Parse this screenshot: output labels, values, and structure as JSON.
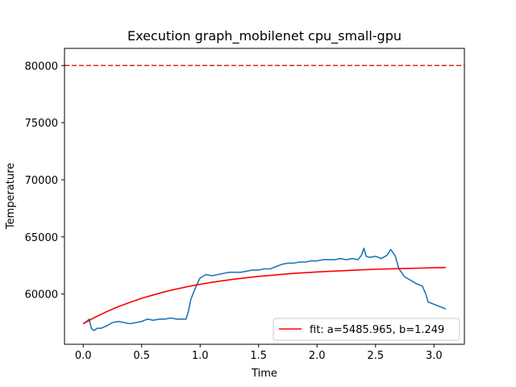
{
  "chart_data": {
    "type": "line",
    "title": "Execution graph_mobilenet cpu_small-gpu",
    "xlabel": "Time",
    "ylabel": "Temperature",
    "xlim": [
      -0.16,
      3.26
    ],
    "ylim": [
      55600,
      81500
    ],
    "x_ticks": [
      0.0,
      0.5,
      1.0,
      1.5,
      2.0,
      2.5,
      3.0
    ],
    "x_tick_labels": [
      "0.0",
      "0.5",
      "1.0",
      "1.5",
      "2.0",
      "2.5",
      "3.0"
    ],
    "y_ticks": [
      60000,
      65000,
      70000,
      75000,
      80000
    ],
    "y_tick_labels": [
      "60000",
      "65000",
      "70000",
      "75000",
      "80000"
    ],
    "grid": false,
    "legend_placement": "lower-right",
    "threshold": {
      "y": 80000,
      "color": "#d62728",
      "style": "dashed"
    },
    "series": [
      {
        "color": "#1f77b4",
        "style": "solid",
        "x": [
          0.0,
          0.03,
          0.05,
          0.07,
          0.09,
          0.12,
          0.15,
          0.2,
          0.25,
          0.3,
          0.35,
          0.4,
          0.45,
          0.5,
          0.55,
          0.6,
          0.65,
          0.7,
          0.75,
          0.8,
          0.85,
          0.88,
          0.9,
          0.92,
          0.95,
          0.98,
          1.0,
          1.05,
          1.1,
          1.15,
          1.2,
          1.25,
          1.3,
          1.35,
          1.4,
          1.45,
          1.5,
          1.55,
          1.6,
          1.65,
          1.7,
          1.75,
          1.8,
          1.85,
          1.9,
          1.95,
          2.0,
          2.05,
          2.1,
          2.15,
          2.2,
          2.25,
          2.3,
          2.35,
          2.38,
          2.4,
          2.42,
          2.45,
          2.5,
          2.55,
          2.6,
          2.63,
          2.65,
          2.67,
          2.7,
          2.75,
          2.8,
          2.85,
          2.9,
          2.93,
          2.95,
          3.0,
          3.05,
          3.1
        ],
        "y": [
          57400,
          57600,
          57800,
          57000,
          56800,
          57000,
          57000,
          57200,
          57500,
          57600,
          57500,
          57400,
          57500,
          57600,
          57800,
          57700,
          57800,
          57800,
          57900,
          57800,
          57800,
          57800,
          58500,
          59500,
          60300,
          61000,
          61400,
          61700,
          61600,
          61700,
          61800,
          61900,
          61900,
          61900,
          62000,
          62100,
          62100,
          62200,
          62200,
          62400,
          62600,
          62700,
          62700,
          62800,
          62800,
          62900,
          62900,
          63000,
          63000,
          63000,
          63100,
          63000,
          63100,
          63000,
          63400,
          64000,
          63300,
          63200,
          63300,
          63100,
          63400,
          63900,
          63600,
          63300,
          62200,
          61500,
          61200,
          60900,
          60700,
          60000,
          59300,
          59100,
          58900,
          58700
        ]
      },
      {
        "name": "fit: a=5485.965, b=1.249",
        "color": "#ff0000",
        "style": "solid",
        "a": 5485.965,
        "b": 1.249,
        "x": [
          0.0,
          0.1,
          0.2,
          0.3,
          0.4,
          0.5,
          0.6,
          0.7,
          0.8,
          0.9,
          1.0,
          1.1,
          1.2,
          1.3,
          1.4,
          1.5,
          1.6,
          1.7,
          1.8,
          1.9,
          2.0,
          2.1,
          2.2,
          2.3,
          2.4,
          2.5,
          2.6,
          2.7,
          2.8,
          2.9,
          3.0,
          3.1
        ],
        "y": [
          57400,
          57960,
          58450,
          58890,
          59270,
          59620,
          59920,
          60200,
          60440,
          60660,
          60850,
          61020,
          61170,
          61310,
          61430,
          61540,
          61630,
          61720,
          61800,
          61870,
          61930,
          61980,
          62030,
          62080,
          62120,
          62160,
          62190,
          62220,
          62250,
          62270,
          62300,
          62320
        ]
      }
    ]
  }
}
